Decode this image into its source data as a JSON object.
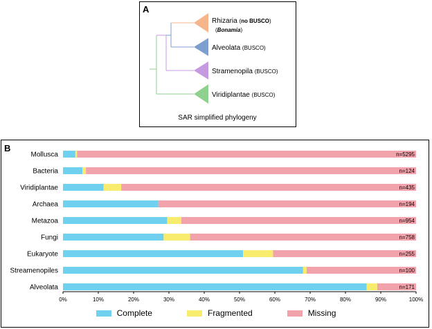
{
  "panel_a": {
    "letter": "A",
    "caption": "SAR simplified phylogeny",
    "taxa": [
      {
        "name": "Rhizaria",
        "note": "no BUSCO",
        "sub": "Bonamia",
        "color": "#f7b58c"
      },
      {
        "name": "Alveolata",
        "note": "BUSCO",
        "color": "#7f9ed0"
      },
      {
        "name": "Stramenopila",
        "note": "BUSCO",
        "color": "#c59ae0"
      },
      {
        "name": "Viridiplantae",
        "note": "BUSCO",
        "color": "#8fd18f"
      }
    ]
  },
  "panel_b": {
    "letter": "B"
  },
  "colors": {
    "complete": "#6fd0ef",
    "fragmented": "#f7ec6e",
    "missing": "#f2a2ab"
  },
  "chart_data": {
    "type": "bar",
    "orientation": "horizontal",
    "stacked": true,
    "categories": [
      "Mollusca",
      "Bacteria",
      "Viridiplantae",
      "Archaea",
      "Metazoa",
      "Fungi",
      "Eukaryote",
      "Streamenopiles",
      "Alveolata"
    ],
    "series": [
      {
        "name": "Complete",
        "values": [
          3.5,
          5.5,
          11.5,
          27,
          29.5,
          28.5,
          51,
          68,
          86
        ]
      },
      {
        "name": "Fragmented",
        "values": [
          0.5,
          1,
          5,
          0,
          4,
          7.5,
          8.5,
          1,
          3
        ]
      },
      {
        "name": "Missing",
        "values": [
          96,
          93.5,
          83.5,
          73,
          66.5,
          64,
          40.5,
          31,
          11
        ]
      }
    ],
    "annotations": [
      "n=5295",
      "n=124",
      "n=435",
      "n=194",
      "n=954",
      "n=758",
      "n=255",
      "n=100",
      "n=171"
    ],
    "xticks": [
      "0%",
      "10%",
      "20%",
      "30%",
      "40%",
      "50%",
      "60%",
      "70%",
      "80%",
      "90%",
      "100%"
    ],
    "xlim": [
      0,
      100
    ],
    "legend_position": "bottom"
  }
}
